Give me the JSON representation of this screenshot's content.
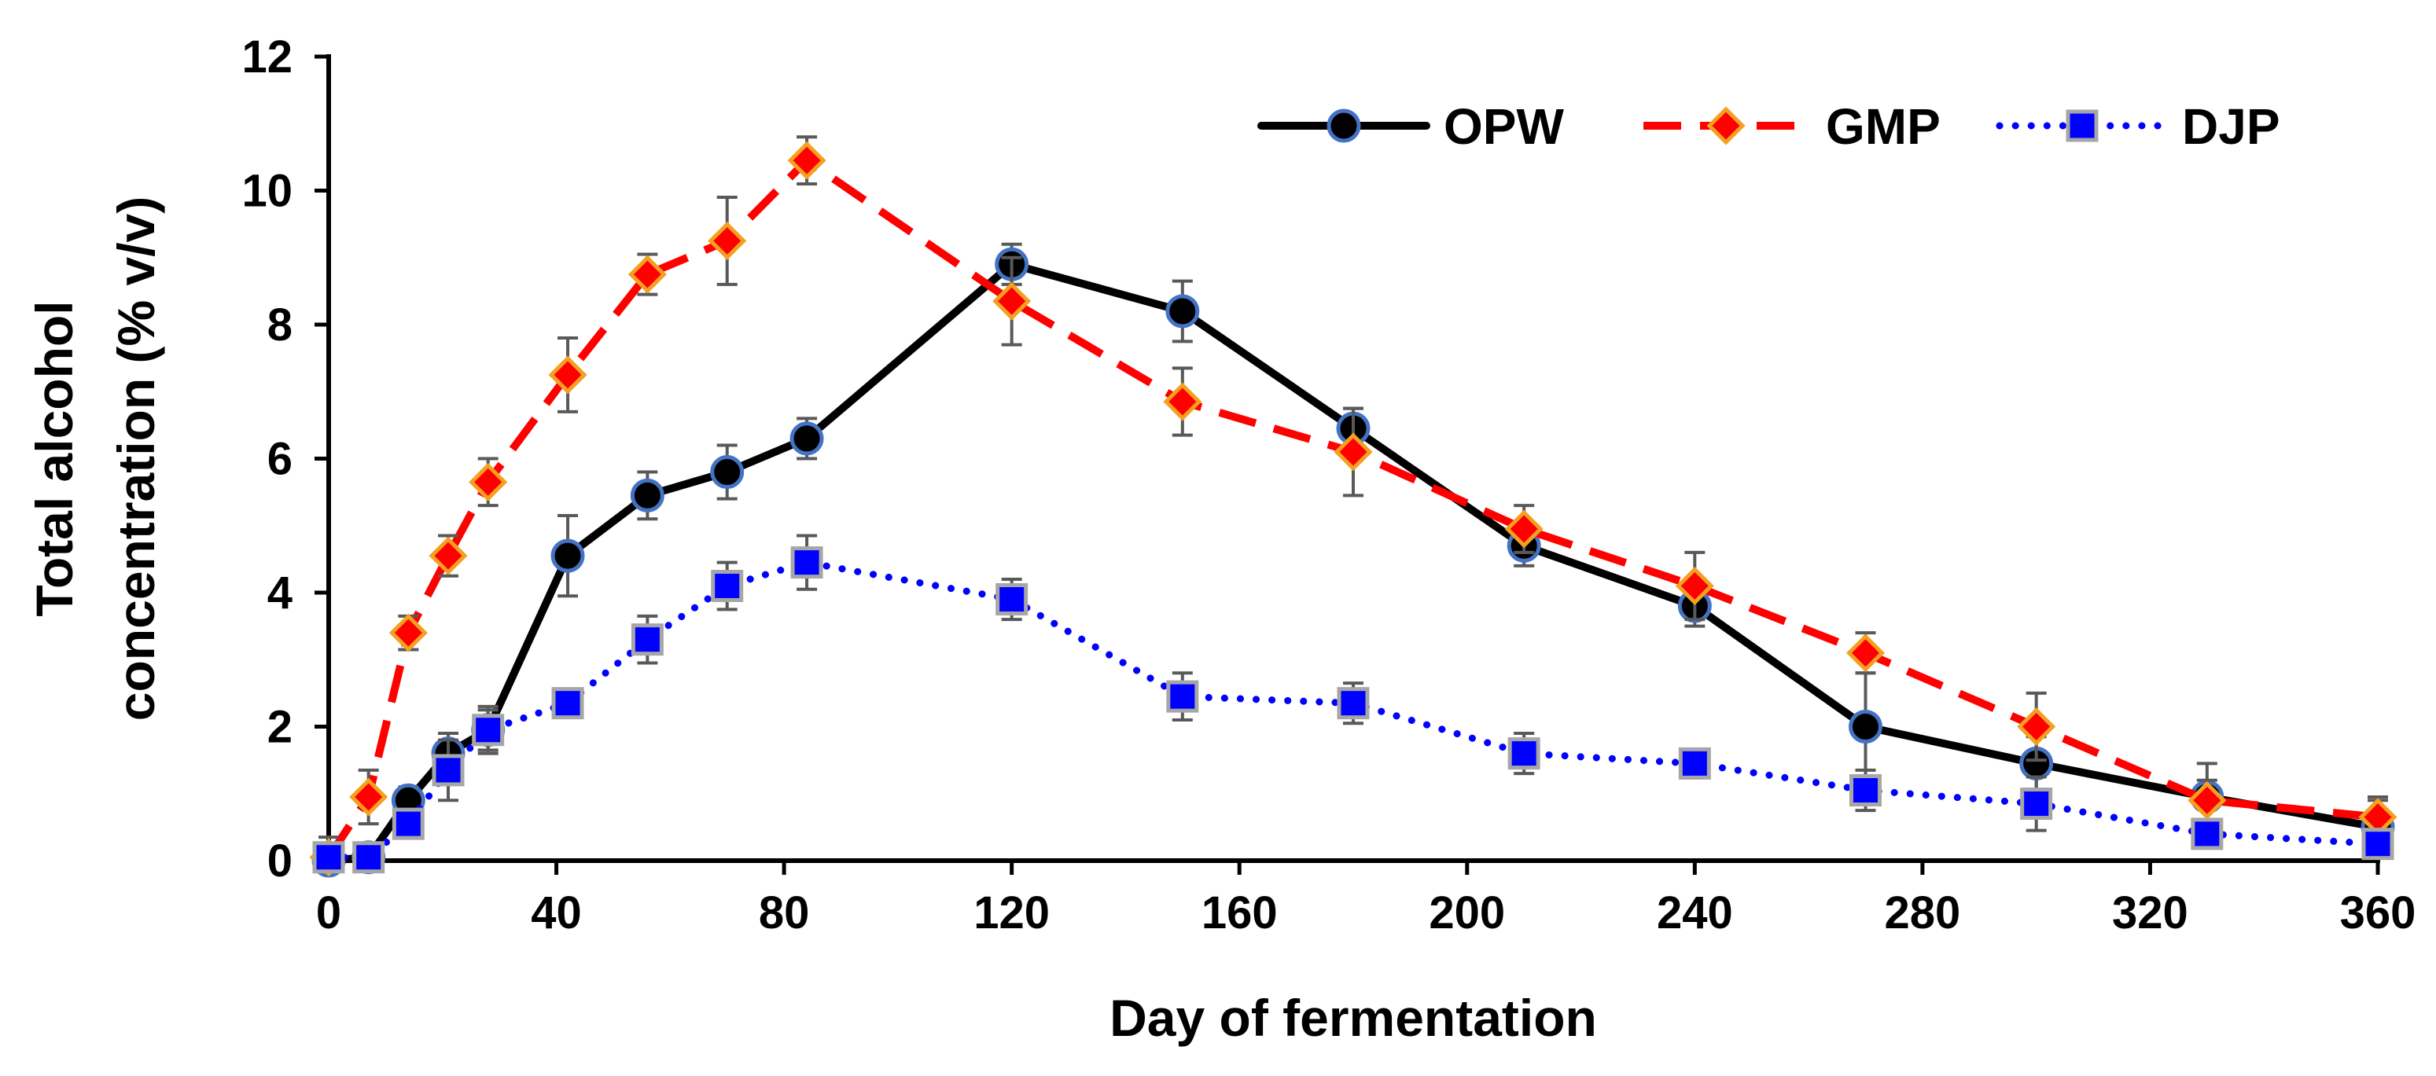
{
  "chart_data": {
    "type": "line",
    "title": "",
    "xlabel": "Day of fermentation",
    "ylabel_lines": [
      "Total alcohol",
      "concentration (% v/v)"
    ],
    "xlim": [
      0,
      360
    ],
    "ylim": [
      0,
      12
    ],
    "xticks": [
      0,
      40,
      80,
      120,
      160,
      200,
      240,
      280,
      320,
      360
    ],
    "yticks": [
      0,
      2,
      4,
      6,
      8,
      10,
      12
    ],
    "grid": false,
    "legend_position": "top-right",
    "series": [
      {
        "name": "OPW",
        "color": "#000000",
        "line_style": "solid",
        "marker": "circle",
        "marker_fill": "#000000",
        "marker_edge": "#4472C4",
        "x": [
          0,
          7,
          14,
          21,
          28,
          42,
          56,
          70,
          84,
          120,
          150,
          180,
          210,
          240,
          270,
          300,
          330,
          360
        ],
        "y": [
          0.0,
          0.05,
          0.9,
          1.6,
          1.95,
          4.55,
          5.45,
          5.8,
          6.3,
          8.9,
          8.2,
          6.45,
          4.7,
          3.8,
          2.0,
          1.45,
          0.95,
          0.5
        ],
        "err": [
          0.05,
          0.05,
          0.2,
          0.3,
          0.3,
          0.6,
          0.35,
          0.4,
          0.3,
          0.3,
          0.45,
          0.3,
          0.3,
          0.3,
          0.8,
          0.4,
          0.5,
          0.4
        ]
      },
      {
        "name": "GMP",
        "color": "#FF0000",
        "line_style": "dashed",
        "marker": "diamond",
        "marker_fill": "#FF0000",
        "marker_edge": "#F4A020",
        "x": [
          0,
          7,
          14,
          21,
          28,
          42,
          56,
          70,
          84,
          120,
          150,
          180,
          210,
          240,
          270,
          300,
          330,
          360
        ],
        "y": [
          0.05,
          0.95,
          3.4,
          4.55,
          5.65,
          7.25,
          8.75,
          9.25,
          10.45,
          8.35,
          6.85,
          6.1,
          4.95,
          4.1,
          3.1,
          2.0,
          0.9,
          0.65
        ],
        "err": [
          0.3,
          0.4,
          0.25,
          0.3,
          0.35,
          0.55,
          0.3,
          0.65,
          0.35,
          0.65,
          0.5,
          0.65,
          0.35,
          0.5,
          0.3,
          0.5,
          0.3,
          0.3
        ]
      },
      {
        "name": "DJP",
        "color": "#0000FF",
        "line_style": "dotted",
        "marker": "square",
        "marker_fill": "#0000FF",
        "marker_edge": "#A6A6A6",
        "x": [
          0,
          7,
          14,
          21,
          28,
          42,
          56,
          70,
          84,
          120,
          150,
          180,
          210,
          240,
          270,
          300,
          330,
          360
        ],
        "y": [
          0.05,
          0.05,
          0.55,
          1.35,
          1.95,
          2.35,
          3.3,
          4.1,
          4.45,
          3.9,
          2.45,
          2.35,
          1.6,
          1.45,
          1.05,
          0.85,
          0.4,
          0.25
        ],
        "err": [
          0.05,
          0.05,
          0.2,
          0.45,
          0.35,
          0.2,
          0.35,
          0.35,
          0.4,
          0.3,
          0.35,
          0.3,
          0.3,
          0.2,
          0.3,
          0.4,
          0.2,
          0.15
        ]
      }
    ]
  }
}
